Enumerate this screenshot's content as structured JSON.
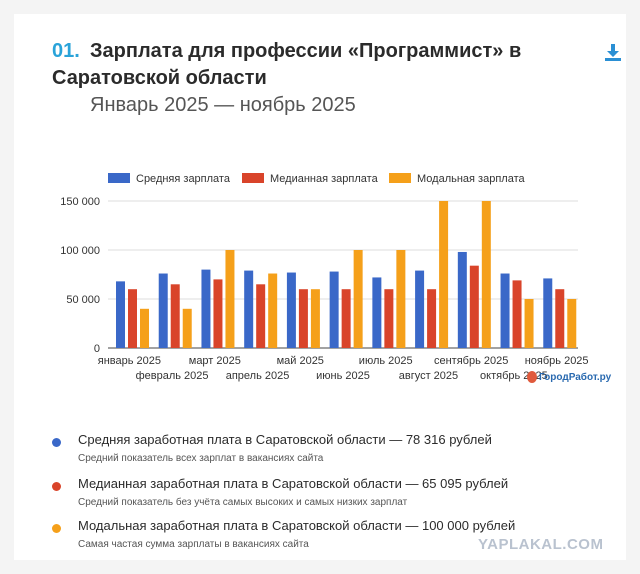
{
  "header": {
    "number": "01.",
    "title_line1": "Зарплата для профессии «Программист» в",
    "title_line2": "Саратовской области",
    "subtitle": "Январь 2025 — ноябрь 2025"
  },
  "icons": {
    "download": "download-icon",
    "site_logo": "santa-icon"
  },
  "chart_data": {
    "type": "bar",
    "categories": [
      "январь 2025",
      "февраль 2025",
      "март 2025",
      "апрель 2025",
      "май 2025",
      "июнь 2025",
      "июль 2025",
      "август 2025",
      "сентябрь 2025",
      "октябрь 2025",
      "ноябрь 2025"
    ],
    "series": [
      {
        "name": "Средняя зарплата",
        "color": "#3a68c8",
        "values": [
          68000,
          76000,
          80000,
          79000,
          77000,
          78000,
          72000,
          79000,
          98000,
          76000,
          71000
        ]
      },
      {
        "name": "Медианная зарплата",
        "color": "#d9442a",
        "values": [
          60000,
          65000,
          70000,
          65000,
          60000,
          60000,
          60000,
          60000,
          84000,
          69000,
          60000
        ]
      },
      {
        "name": "Модальная зарплата",
        "color": "#f5a01a",
        "values": [
          40000,
          40000,
          100000,
          76000,
          60000,
          100000,
          100000,
          150000,
          150000,
          50000,
          50000
        ]
      }
    ],
    "yticks": [
      "0",
      "50 000",
      "100 000",
      "150 000"
    ],
    "ylim": [
      0,
      150000
    ],
    "legend_position": "top",
    "grid": true
  },
  "watermark": "ГородРабот.ру",
  "info": [
    {
      "color": "#3a68c8",
      "title": "Средняя заработная плата в Саратовской области — 78 316 рублей",
      "desc": "Средний показатель всех зарплат в вакансиях сайта"
    },
    {
      "color": "#d9442a",
      "title": "Медианная заработная плата в Саратовской области — 65 095 рублей",
      "desc": "Средний показатель без учёта самых высоких и самых низких зарплат"
    },
    {
      "color": "#f5a01a",
      "title": "Модальная заработная плата в Саратовской области — 100 000 рублей",
      "desc": "Самая частая сумма зарплаты в вакансиях сайта"
    }
  ],
  "footer_watermark": "YAPLAKAL.COM"
}
